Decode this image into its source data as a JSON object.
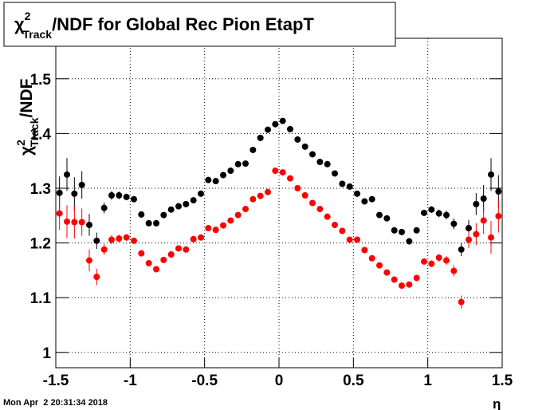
{
  "chart_data": {
    "type": "scatter",
    "title": {
      "symbol": "χ",
      "superscript": "2",
      "subscript": "Track",
      "text": "/NDF for Global Rec Pion EtapT"
    },
    "y_label": {
      "symbol": "χ",
      "superscript": "2",
      "subscript": "Track",
      "text": "/NDF"
    },
    "x_label": "η",
    "timestamp": "Mon Apr  2 20:31:34 2018",
    "x": [
      -1.475,
      -1.425,
      -1.375,
      -1.325,
      -1.275,
      -1.225,
      -1.175,
      -1.125,
      -1.075,
      -1.025,
      -0.975,
      -0.925,
      -0.875,
      -0.825,
      -0.775,
      -0.725,
      -0.675,
      -0.625,
      -0.575,
      -0.525,
      -0.475,
      -0.425,
      -0.375,
      -0.325,
      -0.275,
      -0.225,
      -0.175,
      -0.125,
      -0.075,
      -0.025,
      0.025,
      0.075,
      0.125,
      0.175,
      0.225,
      0.275,
      0.325,
      0.375,
      0.425,
      0.475,
      0.525,
      0.575,
      0.625,
      0.675,
      0.725,
      0.775,
      0.825,
      0.875,
      0.925,
      0.975,
      1.025,
      1.075,
      1.125,
      1.175,
      1.225,
      1.275,
      1.325,
      1.375,
      1.425,
      1.475
    ],
    "series": [
      {
        "color": "#000000",
        "values": [
          1.2915,
          1.325,
          1.29,
          1.306,
          1.233,
          1.204,
          1.264,
          1.287,
          1.287,
          1.284,
          1.28,
          1.252,
          1.236,
          1.236,
          1.251,
          1.261,
          1.267,
          1.271,
          1.278,
          1.29,
          1.315,
          1.313,
          1.324,
          1.332,
          1.344,
          1.345,
          1.37,
          1.392,
          1.407,
          1.417,
          1.423,
          1.408,
          1.389,
          1.376,
          1.362,
          1.348,
          1.344,
          1.327,
          1.308,
          1.303,
          1.29,
          1.276,
          1.28,
          1.251,
          1.245,
          1.223,
          1.22,
          1.203,
          1.223,
          1.255,
          1.261,
          1.254,
          1.251,
          1.235,
          1.188,
          1.227,
          1.271,
          1.281,
          1.325,
          1.294
        ],
        "errors": [
          0.03,
          0.03,
          0.03,
          0.025,
          0.02,
          0.015,
          0.01,
          0.008,
          0.007,
          0.006,
          0.005,
          0.005,
          0.005,
          0.005,
          0.005,
          0.005,
          0.005,
          0.005,
          0.005,
          0.005,
          0.005,
          0.005,
          0.005,
          0.005,
          0.005,
          0.005,
          0.005,
          0.005,
          0.005,
          0.005,
          0.005,
          0.005,
          0.005,
          0.005,
          0.005,
          0.005,
          0.005,
          0.005,
          0.005,
          0.005,
          0.005,
          0.005,
          0.005,
          0.005,
          0.005,
          0.005,
          0.005,
          0.005,
          0.005,
          0.005,
          0.006,
          0.007,
          0.008,
          0.01,
          0.012,
          0.015,
          0.02,
          0.025,
          0.03,
          0.03
        ]
      },
      {
        "color": "#ff0000",
        "values": [
          1.254,
          1.239,
          1.238,
          1.238,
          1.168,
          1.138,
          1.188,
          1.206,
          1.208,
          1.21,
          1.204,
          1.181,
          1.163,
          1.152,
          1.169,
          1.179,
          1.19,
          1.188,
          1.207,
          1.21,
          1.227,
          1.224,
          1.232,
          1.241,
          1.251,
          1.262,
          1.28,
          1.286,
          1.293,
          1.332,
          1.329,
          1.318,
          1.3,
          1.287,
          1.273,
          1.262,
          1.248,
          1.233,
          1.222,
          1.206,
          1.206,
          1.187,
          1.172,
          1.159,
          1.146,
          1.133,
          1.122,
          1.124,
          1.136,
          1.166,
          1.162,
          1.173,
          1.168,
          1.149,
          1.092,
          1.206,
          1.216,
          1.241,
          1.21,
          1.249
        ],
        "errors": [
          0.03,
          0.03,
          0.03,
          0.025,
          0.02,
          0.015,
          0.01,
          0.008,
          0.007,
          0.006,
          0.005,
          0.005,
          0.005,
          0.005,
          0.005,
          0.005,
          0.005,
          0.005,
          0.005,
          0.005,
          0.005,
          0.005,
          0.005,
          0.005,
          0.005,
          0.005,
          0.005,
          0.005,
          0.005,
          0.005,
          0.005,
          0.005,
          0.005,
          0.005,
          0.005,
          0.005,
          0.005,
          0.005,
          0.005,
          0.005,
          0.005,
          0.005,
          0.005,
          0.005,
          0.005,
          0.005,
          0.005,
          0.005,
          0.005,
          0.005,
          0.006,
          0.007,
          0.008,
          0.01,
          0.012,
          0.015,
          0.02,
          0.025,
          0.03,
          0.03
        ]
      }
    ],
    "xlim": [
      -1.5,
      1.5
    ],
    "ylim": [
      0.972,
      1.574
    ],
    "xticks": [
      -1.5,
      -1,
      -0.5,
      0,
      0.5,
      1,
      1.5
    ],
    "yticks": [
      1,
      1.1,
      1.2,
      1.3,
      1.4,
      1.5
    ],
    "grid": true
  }
}
